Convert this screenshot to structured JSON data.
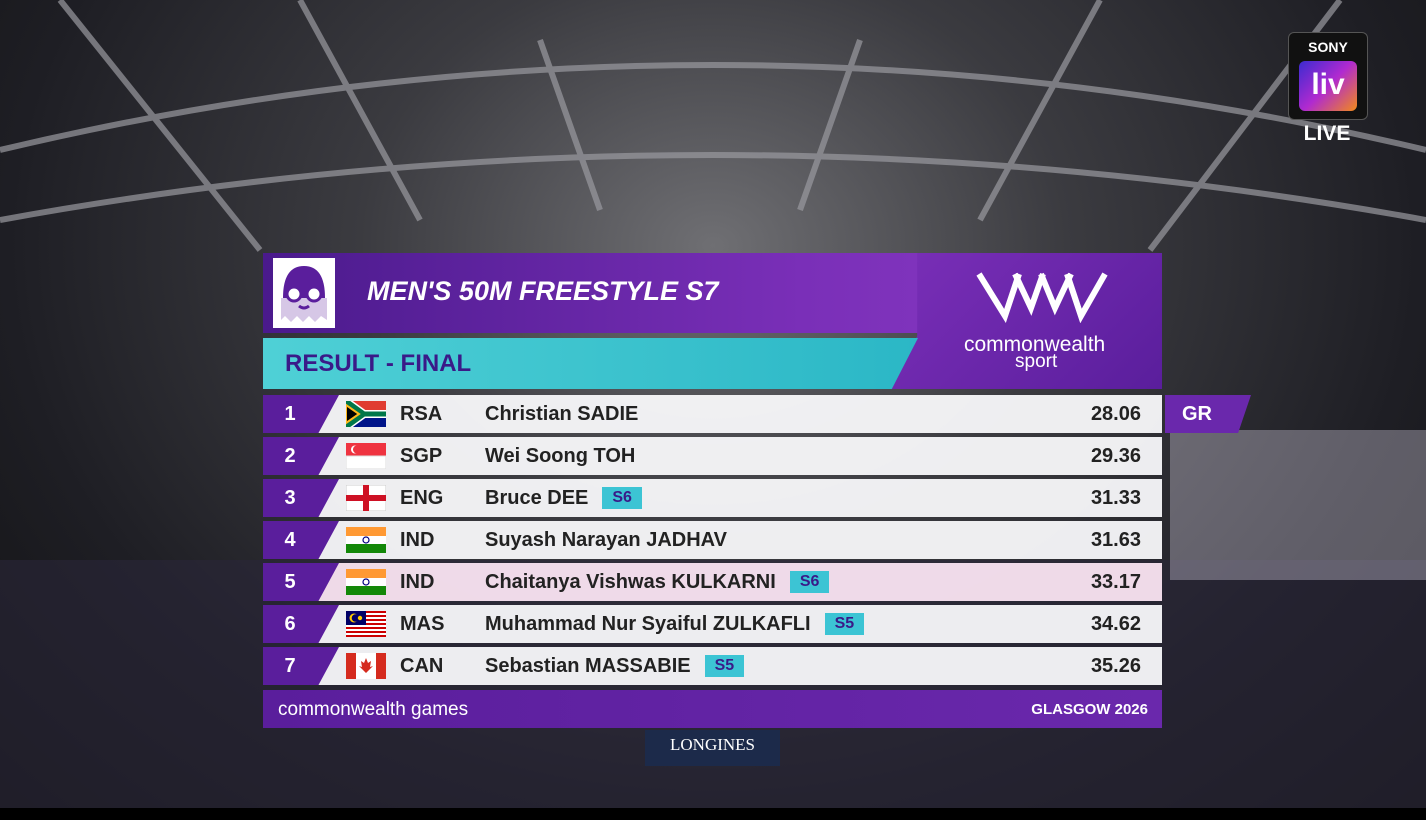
{
  "broadcaster": {
    "brand": "SONY",
    "logo": "liv",
    "status": "LIVE"
  },
  "header": {
    "title": "MEN'S 50M FREESTYLE S7",
    "subtitle": "RESULT - FINAL",
    "sponsor": {
      "line1": "commonwealth",
      "line2": "sport"
    }
  },
  "results": [
    {
      "rank": 1,
      "country": "RSA",
      "name": "Christian SADIE",
      "time": "28.06",
      "record": "GR"
    },
    {
      "rank": 2,
      "country": "SGP",
      "name": "Wei Soong TOH",
      "time": "29.36"
    },
    {
      "rank": 3,
      "country": "ENG",
      "name": "Bruce DEE",
      "class": "S6",
      "time": "31.33"
    },
    {
      "rank": 4,
      "country": "IND",
      "name": "Suyash Narayan JADHAV",
      "time": "31.63"
    },
    {
      "rank": 5,
      "country": "IND",
      "name": "Chaitanya Vishwas KULKARNI",
      "class": "S6",
      "time": "33.17"
    },
    {
      "rank": 6,
      "country": "MAS",
      "name": "Muhammad Nur Syaiful ZULKAFLI",
      "class": "S5",
      "time": "34.62"
    },
    {
      "rank": 7,
      "country": "CAN",
      "name": "Sebastian MASSABIE",
      "class": "S5",
      "time": "35.26"
    }
  ],
  "footer": {
    "left": "commonwealth games",
    "right": "GLASGOW 2026"
  },
  "timing": "LONGINES"
}
